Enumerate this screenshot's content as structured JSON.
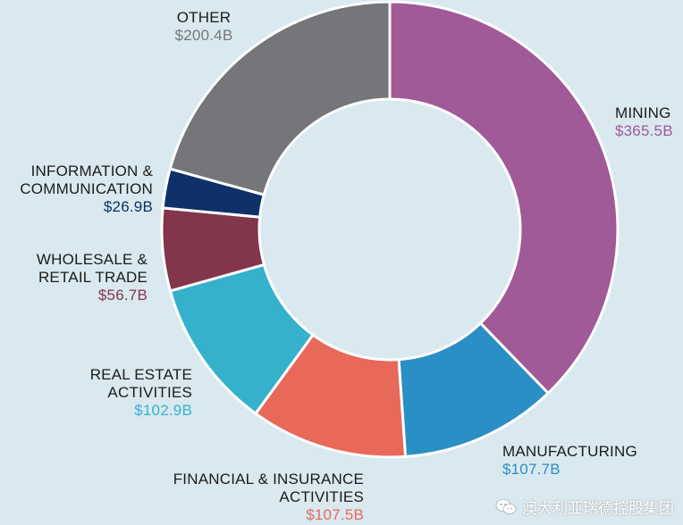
{
  "chart_data": {
    "type": "pie",
    "variant": "donut",
    "slices": [
      {
        "id": "mining",
        "label_lines": [
          "MINING"
        ],
        "value": 365.5,
        "value_label": "$365.5B",
        "color": "#a05a97"
      },
      {
        "id": "manufacturing",
        "label_lines": [
          "MANUFACTURING"
        ],
        "value": 107.7,
        "value_label": "$107.7B",
        "color": "#2a8fc4"
      },
      {
        "id": "financial",
        "label_lines": [
          "FINANCIAL & INSURANCE",
          "ACTIVITIES"
        ],
        "value": 107.5,
        "value_label": "$107.5B",
        "color": "#e8695a"
      },
      {
        "id": "real-estate",
        "label_lines": [
          "REAL ESTATE",
          "ACTIVITIES"
        ],
        "value": 102.9,
        "value_label": "$102.9B",
        "color": "#35b1cc"
      },
      {
        "id": "wholesale",
        "label_lines": [
          "WHOLESALE &",
          "RETAIL TRADE"
        ],
        "value": 56.7,
        "value_label": "$56.7B",
        "color": "#82354b"
      },
      {
        "id": "information",
        "label_lines": [
          "INFORMATION &",
          "COMMUNICATION"
        ],
        "value": 26.9,
        "value_label": "$26.9B",
        "color": "#0f3068"
      },
      {
        "id": "other",
        "label_lines": [
          "OTHER"
        ],
        "value": 200.4,
        "value_label": "$200.4B",
        "color": "#747679"
      }
    ]
  },
  "watermark": {
    "text": "澳大利亚瑞德控股集团",
    "icon": "wechat-icon"
  }
}
